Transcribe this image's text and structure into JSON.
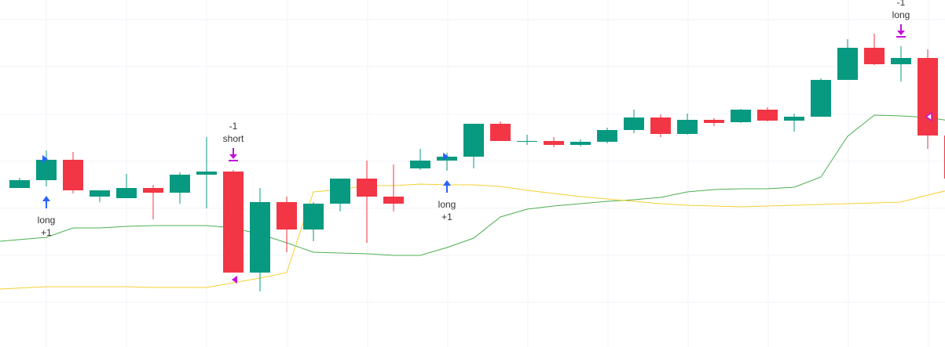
{
  "colors": {
    "up": "#089981",
    "down": "#f23645",
    "grid": "#f0f3fa",
    "band_upper": "#4caf50",
    "band_lower": "#f5d033",
    "long_arrow": "#2962ff",
    "exit_marker": "#c111d9",
    "fill_marker_long": "#2962ff",
    "fill_marker_exit": "#c111d9"
  },
  "chart_data": {
    "type": "candlestick",
    "y_axis_visible": false,
    "x_axis_visible": false,
    "grid": true,
    "ylim": [
      0,
      443
    ],
    "note_units": "price values estimated from an unlabeled axis; higher value = higher on chart",
    "candles": [
      {
        "o": 203,
        "h": 216,
        "l": 203,
        "c": 213
      },
      {
        "o": 213,
        "h": 251,
        "l": 205,
        "c": 239
      },
      {
        "o": 239,
        "h": 249,
        "l": 196,
        "c": 200
      },
      {
        "o": 192,
        "h": 200,
        "l": 185,
        "c": 200
      },
      {
        "o": 190,
        "h": 221,
        "l": 190,
        "c": 203
      },
      {
        "o": 203,
        "h": 207,
        "l": 163,
        "c": 197
      },
      {
        "o": 197,
        "h": 223,
        "l": 183,
        "c": 220
      },
      {
        "o": 220,
        "h": 268,
        "l": 177,
        "c": 224
      },
      {
        "o": 224,
        "h": 226,
        "l": 95,
        "c": 95
      },
      {
        "o": 95,
        "h": 203,
        "l": 71,
        "c": 185
      },
      {
        "o": 185,
        "h": 192,
        "l": 121,
        "c": 150
      },
      {
        "o": 150,
        "h": 185,
        "l": 135,
        "c": 183
      },
      {
        "o": 183,
        "h": 215,
        "l": 173,
        "c": 215
      },
      {
        "o": 215,
        "h": 238,
        "l": 133,
        "c": 192
      },
      {
        "o": 192,
        "h": 233,
        "l": 173,
        "c": 183
      },
      {
        "o": 228,
        "h": 253,
        "l": 226,
        "c": 238
      },
      {
        "o": 238,
        "h": 248,
        "l": 225,
        "c": 243
      },
      {
        "o": 243,
        "h": 285,
        "l": 228,
        "c": 285
      },
      {
        "o": 285,
        "h": 288,
        "l": 263,
        "c": 263
      },
      {
        "o": 263,
        "h": 271,
        "l": 258,
        "c": 263
      },
      {
        "o": 263,
        "h": 268,
        "l": 255,
        "c": 258
      },
      {
        "o": 258,
        "h": 265,
        "l": 256,
        "c": 262
      },
      {
        "o": 262,
        "h": 280,
        "l": 260,
        "c": 277
      },
      {
        "o": 277,
        "h": 303,
        "l": 273,
        "c": 293
      },
      {
        "o": 293,
        "h": 297,
        "l": 268,
        "c": 272
      },
      {
        "o": 272,
        "h": 298,
        "l": 271,
        "c": 290
      },
      {
        "o": 290,
        "h": 292,
        "l": 282,
        "c": 286
      },
      {
        "o": 287,
        "h": 304,
        "l": 286,
        "c": 303
      },
      {
        "o": 303,
        "h": 306,
        "l": 288,
        "c": 289
      },
      {
        "o": 289,
        "h": 298,
        "l": 275,
        "c": 294
      },
      {
        "o": 294,
        "h": 343,
        "l": 294,
        "c": 341
      },
      {
        "o": 341,
        "h": 393,
        "l": 341,
        "c": 382
      },
      {
        "o": 382,
        "h": 400,
        "l": 360,
        "c": 361
      },
      {
        "o": 361,
        "h": 384,
        "l": 339,
        "c": 369
      },
      {
        "o": 369,
        "h": 380,
        "l": 253,
        "c": 270
      },
      {
        "o": 270,
        "h": 288,
        "l": 170,
        "c": 215
      }
    ],
    "series": [
      {
        "style": "line",
        "color_key": "band_upper",
        "values": [
          135,
          140,
          152,
          152,
          154,
          155,
          155,
          155,
          152,
          144,
          133,
          121,
          120,
          119,
          117,
          117,
          127,
          139,
          166,
          176,
          180,
          183,
          186,
          188,
          191,
          198,
          201,
          202,
          202,
          204,
          217,
          269,
          296,
          295,
          293,
          288
        ]
      },
      {
        "style": "line",
        "color_key": "band_lower",
        "values": [
          74,
          77,
          77,
          77,
          77,
          76,
          76,
          76,
          82,
          88,
          95,
          198,
          201,
          206,
          206,
          208,
          207,
          207,
          205,
          200,
          196,
          192,
          189,
          186,
          183,
          181,
          180,
          179,
          180,
          181,
          182,
          183,
          184,
          185,
          194,
          202
        ]
      }
    ],
    "signals": [
      {
        "bar": 1,
        "kind": "entry",
        "dir": "up",
        "labels": [
          "long",
          "+1"
        ]
      },
      {
        "bar": 8,
        "kind": "exit",
        "dir": "down",
        "labels": [
          "-1",
          "short"
        ]
      },
      {
        "bar": 16,
        "kind": "entry",
        "dir": "up",
        "labels": [
          "long",
          "+1"
        ]
      },
      {
        "bar": 33,
        "kind": "exit",
        "dir": "down",
        "labels": [
          "-1",
          "long"
        ]
      }
    ],
    "fill_markers": [
      {
        "bar": 1,
        "y": 240,
        "shape": "right",
        "color_key": "fill_marker_long"
      },
      {
        "bar": 8,
        "y": 86,
        "shape": "left",
        "color_key": "fill_marker_exit"
      },
      {
        "bar": 16,
        "y": 243,
        "shape": "right",
        "color_key": "fill_marker_long"
      },
      {
        "bar": 34,
        "y": 294,
        "shape": "left-hollow",
        "color_key": "fill_marker_exit"
      }
    ]
  }
}
